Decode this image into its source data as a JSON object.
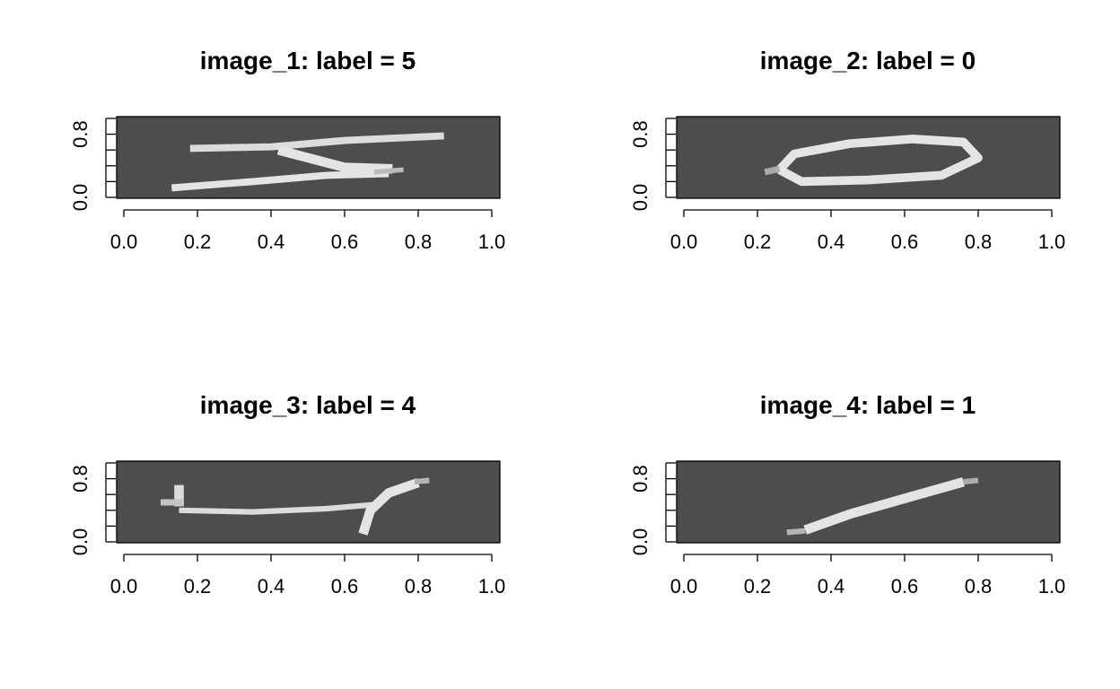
{
  "colors": {
    "background": "#4d4d4d",
    "stroke_bright": "#ececec",
    "stroke_mid": "#b0b0b0",
    "stroke_dim": "#7a7a7a"
  },
  "chart_data": [
    {
      "type": "heatmap",
      "title": "image_1: label = 5",
      "xlabel": "",
      "ylabel": "",
      "xlim": [
        0,
        1
      ],
      "ylim": [
        0,
        1
      ],
      "x_ticks": [
        "0.0",
        "0.2",
        "0.4",
        "0.6",
        "0.8",
        "1.0"
      ],
      "y_ticks": [
        "0.0",
        "0.8"
      ],
      "grid": false,
      "strokes": [
        {
          "intensity": 0.9,
          "width": 0.09,
          "points": [
            [
              0.18,
              0.62
            ],
            [
              0.4,
              0.64
            ],
            [
              0.6,
              0.72
            ],
            [
              0.87,
              0.78
            ]
          ]
        },
        {
          "intensity": 0.95,
          "width": 0.12,
          "points": [
            [
              0.42,
              0.6
            ],
            [
              0.6,
              0.38
            ],
            [
              0.73,
              0.36
            ]
          ]
        },
        {
          "intensity": 0.95,
          "width": 0.09,
          "points": [
            [
              0.13,
              0.12
            ],
            [
              0.35,
              0.2
            ],
            [
              0.55,
              0.28
            ],
            [
              0.72,
              0.3
            ]
          ]
        },
        {
          "intensity": 0.7,
          "width": 0.06,
          "points": [
            [
              0.68,
              0.32
            ],
            [
              0.76,
              0.35
            ]
          ]
        }
      ]
    },
    {
      "type": "heatmap",
      "title": "image_2: label = 0",
      "xlabel": "",
      "ylabel": "",
      "xlim": [
        0,
        1
      ],
      "ylim": [
        0,
        1
      ],
      "x_ticks": [
        "0.0",
        "0.2",
        "0.4",
        "0.6",
        "0.8",
        "1.0"
      ],
      "y_ticks": [
        "0.0",
        "0.8"
      ],
      "grid": false,
      "strokes": [
        {
          "intensity": 0.95,
          "width": 0.11,
          "points": [
            [
              0.26,
              0.35
            ],
            [
              0.3,
              0.55
            ],
            [
              0.45,
              0.68
            ],
            [
              0.62,
              0.74
            ],
            [
              0.76,
              0.7
            ],
            [
              0.8,
              0.5
            ],
            [
              0.7,
              0.28
            ],
            [
              0.5,
              0.22
            ],
            [
              0.32,
              0.2
            ],
            [
              0.26,
              0.35
            ]
          ]
        },
        {
          "intensity": 0.6,
          "width": 0.08,
          "points": [
            [
              0.22,
              0.32
            ],
            [
              0.26,
              0.36
            ]
          ]
        }
      ]
    },
    {
      "type": "heatmap",
      "title": "image_3: label = 4",
      "xlabel": "",
      "ylabel": "",
      "xlim": [
        0,
        1
      ],
      "ylim": [
        0,
        1
      ],
      "x_ticks": [
        "0.0",
        "0.2",
        "0.4",
        "0.6",
        "0.8",
        "1.0"
      ],
      "y_ticks": [
        "0.0",
        "0.8"
      ],
      "grid": false,
      "strokes": [
        {
          "intensity": 0.9,
          "width": 0.12,
          "points": [
            [
              0.15,
              0.72
            ],
            [
              0.15,
              0.45
            ]
          ]
        },
        {
          "intensity": 0.75,
          "width": 0.08,
          "points": [
            [
              0.1,
              0.5
            ],
            [
              0.16,
              0.5
            ]
          ]
        },
        {
          "intensity": 0.9,
          "width": 0.07,
          "points": [
            [
              0.15,
              0.4
            ],
            [
              0.35,
              0.38
            ],
            [
              0.55,
              0.42
            ],
            [
              0.7,
              0.48
            ]
          ]
        },
        {
          "intensity": 0.95,
          "width": 0.12,
          "points": [
            [
              0.65,
              0.1
            ],
            [
              0.67,
              0.4
            ],
            [
              0.72,
              0.62
            ],
            [
              0.8,
              0.75
            ]
          ]
        },
        {
          "intensity": 0.65,
          "width": 0.07,
          "points": [
            [
              0.79,
              0.76
            ],
            [
              0.83,
              0.78
            ]
          ]
        }
      ]
    },
    {
      "type": "heatmap",
      "title": "image_4: label = 1",
      "xlabel": "",
      "ylabel": "",
      "xlim": [
        0,
        1
      ],
      "ylim": [
        0,
        1
      ],
      "x_ticks": [
        "0.0",
        "0.2",
        "0.4",
        "0.6",
        "0.8",
        "1.0"
      ],
      "y_ticks": [
        "0.0",
        "0.8"
      ],
      "grid": false,
      "strokes": [
        {
          "intensity": 0.95,
          "width": 0.12,
          "points": [
            [
              0.33,
              0.15
            ],
            [
              0.45,
              0.35
            ],
            [
              0.6,
              0.55
            ],
            [
              0.76,
              0.76
            ]
          ]
        },
        {
          "intensity": 0.65,
          "width": 0.07,
          "points": [
            [
              0.28,
              0.12
            ],
            [
              0.33,
              0.14
            ]
          ]
        },
        {
          "intensity": 0.6,
          "width": 0.07,
          "points": [
            [
              0.76,
              0.76
            ],
            [
              0.8,
              0.78
            ]
          ]
        }
      ]
    }
  ]
}
